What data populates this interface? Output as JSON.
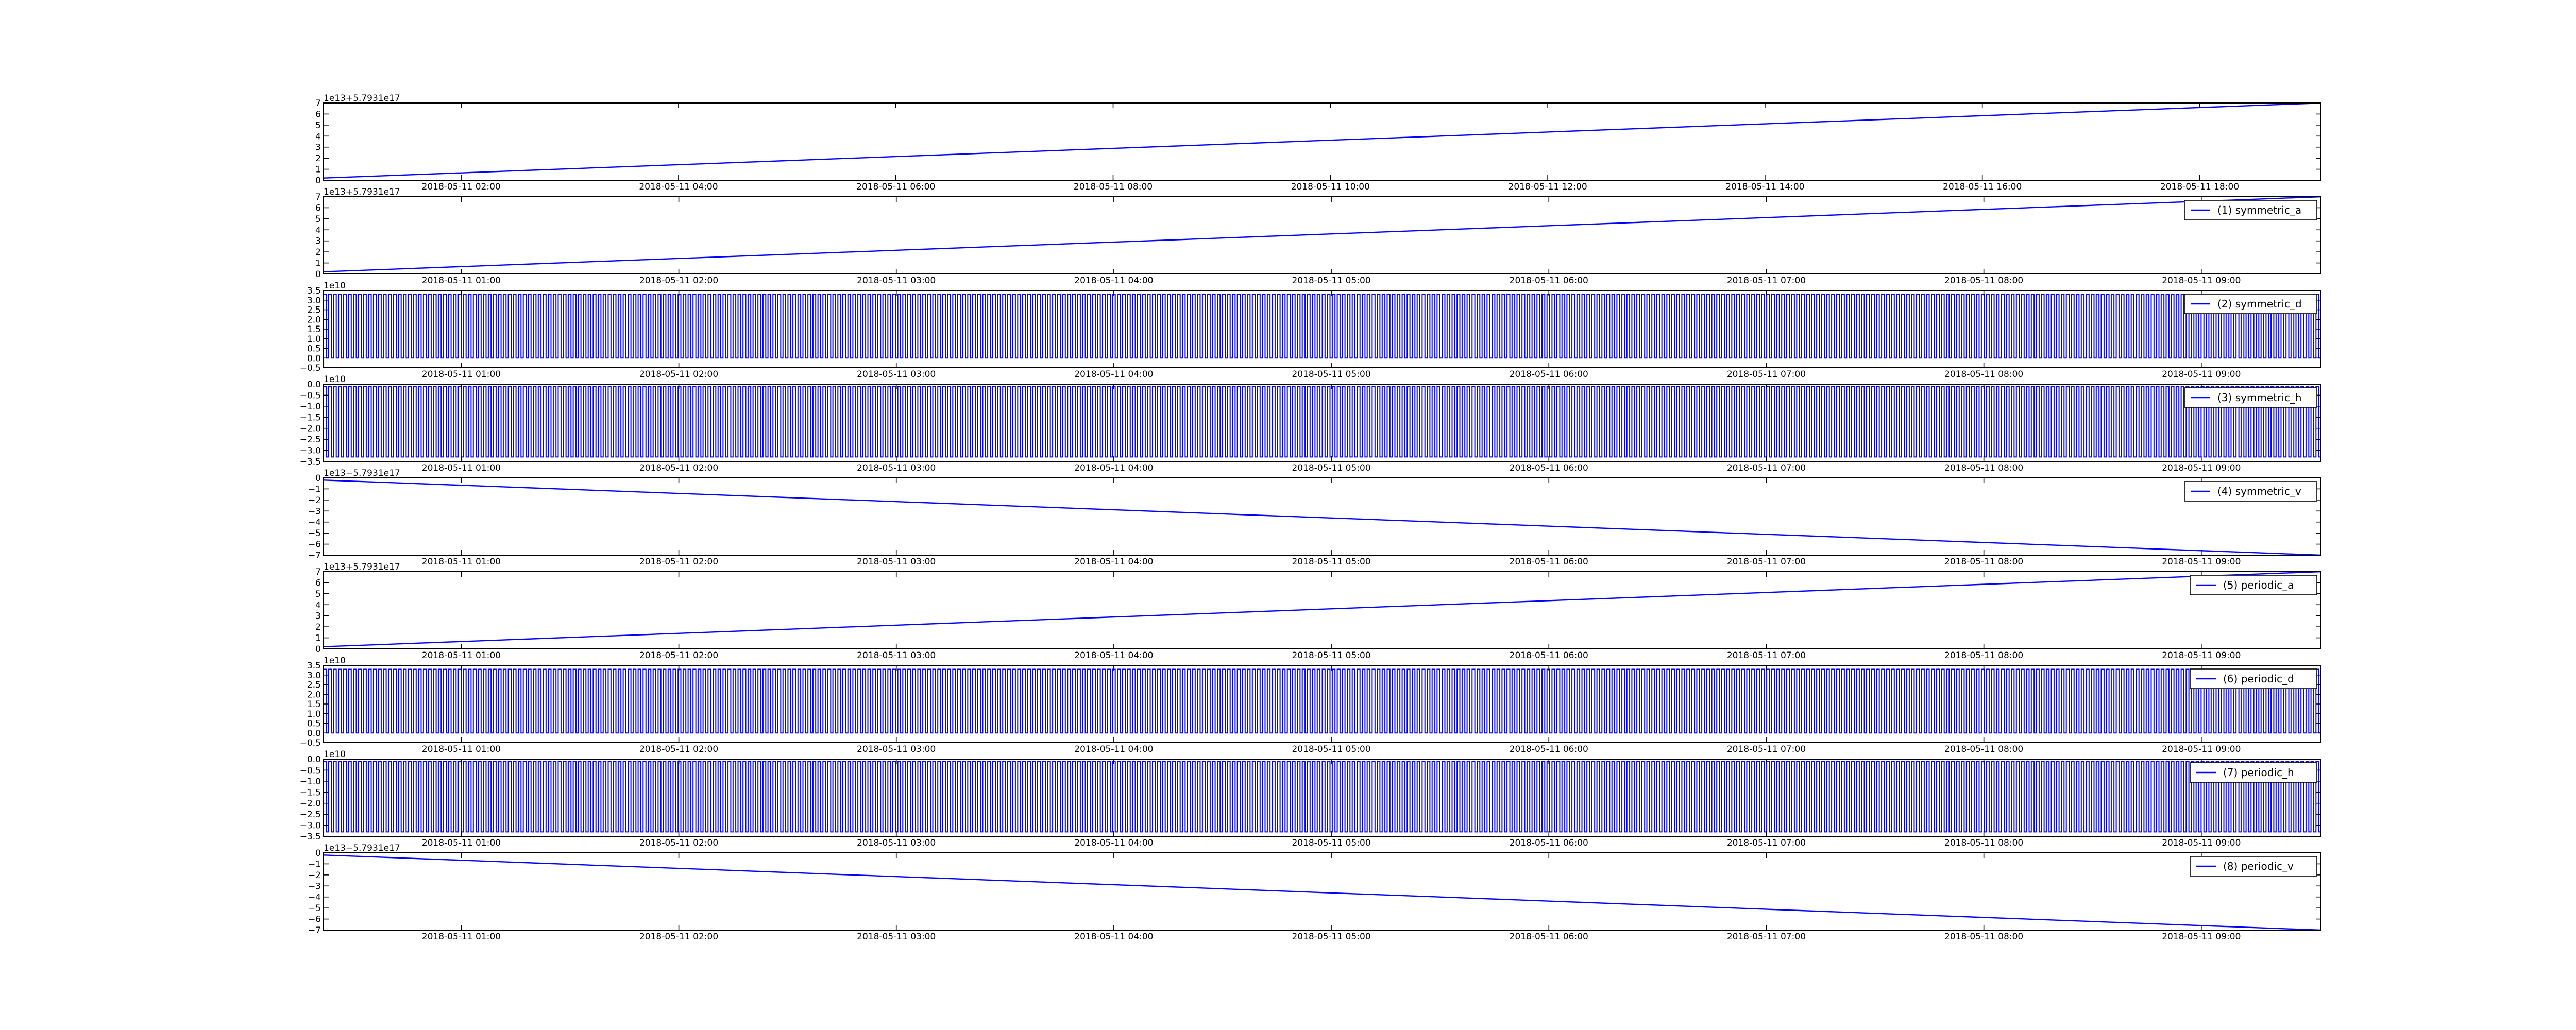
{
  "colors": {
    "line": "#0000ff",
    "axes": "#000000",
    "background": "#ffffff"
  },
  "chart_data": [
    {
      "type": "line",
      "kind": "ramp",
      "legend": "",
      "offset_label": "1e13+5.7931e17",
      "yticks": [
        "0",
        "1",
        "2",
        "3",
        "4",
        "5",
        "6",
        "7"
      ],
      "ylim": [
        0,
        7
      ],
      "xticks": [
        "2018-05-11 02:00",
        "2018-05-11 04:00",
        "2018-05-11 06:00",
        "2018-05-11 08:00",
        "2018-05-11 10:00",
        "2018-05-11 12:00",
        "2018-05-11 14:00",
        "2018-05-11 16:00",
        "2018-05-11 18:00"
      ],
      "xlim": [
        "2018-05-11 00:44",
        "2018-05-11 19:07"
      ],
      "series": [
        {
          "x": [
            "2018-05-11 00:44",
            "2018-05-11 19:07"
          ],
          "y": [
            0.2,
            7
          ]
        }
      ]
    },
    {
      "type": "line",
      "kind": "ramp",
      "legend": "(1) symmetric_a",
      "offset_label": "1e13+5.7931e17",
      "yticks": [
        "0",
        "1",
        "2",
        "3",
        "4",
        "5",
        "6",
        "7"
      ],
      "ylim": [
        0,
        7
      ],
      "xticks": [
        "2018-05-11 01:00",
        "2018-05-11 02:00",
        "2018-05-11 03:00",
        "2018-05-11 04:00",
        "2018-05-11 05:00",
        "2018-05-11 06:00",
        "2018-05-11 07:00",
        "2018-05-11 08:00",
        "2018-05-11 09:00"
      ],
      "xlim": [
        "2018-05-11 00:22",
        "2018-05-11 09:33"
      ],
      "series": [
        {
          "x": [
            "2018-05-11 00:22",
            "2018-05-11 09:33"
          ],
          "y": [
            0.2,
            7
          ]
        }
      ]
    },
    {
      "type": "line",
      "kind": "pulse",
      "legend": "(2) symmetric_d",
      "offset_label": "1e10",
      "yticks": [
        "−0.5",
        "0.0",
        "0.5",
        "1.0",
        "1.5",
        "2.0",
        "2.5",
        "3.0",
        "3.5"
      ],
      "ylim": [
        -0.5,
        3.5
      ],
      "xticks": [
        "2018-05-11 01:00",
        "2018-05-11 02:00",
        "2018-05-11 03:00",
        "2018-05-11 04:00",
        "2018-05-11 05:00",
        "2018-05-11 06:00",
        "2018-05-11 07:00",
        "2018-05-11 08:00",
        "2018-05-11 09:00"
      ],
      "xlim": [
        "2018-05-11 00:22",
        "2018-05-11 09:33"
      ],
      "series": [
        {
          "low": 0,
          "high": 3.3,
          "pulses": 400
        }
      ]
    },
    {
      "type": "line",
      "kind": "pulse",
      "legend": "(3) symmetric_h",
      "offset_label": "1e10",
      "yticks": [
        "−3.5",
        "−3.0",
        "−2.5",
        "−2.0",
        "−1.5",
        "−1.0",
        "−0.5",
        "0.0"
      ],
      "ylim": [
        -3.5,
        0
      ],
      "xticks": [
        "2018-05-11 01:00",
        "2018-05-11 02:00",
        "2018-05-11 03:00",
        "2018-05-11 04:00",
        "2018-05-11 05:00",
        "2018-05-11 06:00",
        "2018-05-11 07:00",
        "2018-05-11 08:00",
        "2018-05-11 09:00"
      ],
      "xlim": [
        "2018-05-11 00:22",
        "2018-05-11 09:33"
      ],
      "series": [
        {
          "low": -3.3,
          "high": -0.1,
          "pulses": 400
        }
      ]
    },
    {
      "type": "line",
      "kind": "ramp",
      "legend": "(4) symmetric_v",
      "offset_label": "1e13−5.7931e17",
      "yticks": [
        "−7",
        "−6",
        "−5",
        "−4",
        "−3",
        "−2",
        "−1",
        "0"
      ],
      "ylim": [
        -7,
        0
      ],
      "xticks": [
        "2018-05-11 01:00",
        "2018-05-11 02:00",
        "2018-05-11 03:00",
        "2018-05-11 04:00",
        "2018-05-11 05:00",
        "2018-05-11 06:00",
        "2018-05-11 07:00",
        "2018-05-11 08:00",
        "2018-05-11 09:00"
      ],
      "xlim": [
        "2018-05-11 00:22",
        "2018-05-11 09:33"
      ],
      "series": [
        {
          "x": [
            "2018-05-11 00:22",
            "2018-05-11 09:33"
          ],
          "y": [
            -0.2,
            -7
          ]
        }
      ]
    },
    {
      "type": "line",
      "kind": "ramp",
      "legend": "(5) periodic_a",
      "offset_label": "1e13+5.7931e17",
      "yticks": [
        "0",
        "1",
        "2",
        "3",
        "4",
        "5",
        "6",
        "7"
      ],
      "ylim": [
        0,
        7
      ],
      "xticks": [
        "2018-05-11 01:00",
        "2018-05-11 02:00",
        "2018-05-11 03:00",
        "2018-05-11 04:00",
        "2018-05-11 05:00",
        "2018-05-11 06:00",
        "2018-05-11 07:00",
        "2018-05-11 08:00",
        "2018-05-11 09:00"
      ],
      "xlim": [
        "2018-05-11 00:22",
        "2018-05-11 09:33"
      ],
      "series": [
        {
          "x": [
            "2018-05-11 00:22",
            "2018-05-11 09:33"
          ],
          "y": [
            0.2,
            7
          ]
        }
      ]
    },
    {
      "type": "line",
      "kind": "pulse",
      "legend": "(6) periodic_d",
      "offset_label": "1e10",
      "yticks": [
        "−0.5",
        "0.0",
        "0.5",
        "1.0",
        "1.5",
        "2.0",
        "2.5",
        "3.0",
        "3.5"
      ],
      "ylim": [
        -0.5,
        3.5
      ],
      "xticks": [
        "2018-05-11 01:00",
        "2018-05-11 02:00",
        "2018-05-11 03:00",
        "2018-05-11 04:00",
        "2018-05-11 05:00",
        "2018-05-11 06:00",
        "2018-05-11 07:00",
        "2018-05-11 08:00",
        "2018-05-11 09:00"
      ],
      "xlim": [
        "2018-05-11 00:22",
        "2018-05-11 09:33"
      ],
      "series": [
        {
          "low": 0,
          "high": 3.3,
          "pulses": 400
        }
      ]
    },
    {
      "type": "line",
      "kind": "pulse",
      "legend": "(7) periodic_h",
      "offset_label": "1e10",
      "yticks": [
        "−3.5",
        "−3.0",
        "−2.5",
        "−2.0",
        "−1.5",
        "−1.0",
        "−0.5",
        "0.0"
      ],
      "ylim": [
        -3.5,
        0
      ],
      "xticks": [
        "2018-05-11 01:00",
        "2018-05-11 02:00",
        "2018-05-11 03:00",
        "2018-05-11 04:00",
        "2018-05-11 05:00",
        "2018-05-11 06:00",
        "2018-05-11 07:00",
        "2018-05-11 08:00",
        "2018-05-11 09:00"
      ],
      "xlim": [
        "2018-05-11 00:22",
        "2018-05-11 09:33"
      ],
      "series": [
        {
          "low": -3.3,
          "high": -0.1,
          "pulses": 400
        }
      ]
    },
    {
      "type": "line",
      "kind": "ramp",
      "legend": "(8) periodic_v",
      "offset_label": "1e13−5.7931e17",
      "yticks": [
        "−7",
        "−6",
        "−5",
        "−4",
        "−3",
        "−2",
        "−1",
        "0"
      ],
      "ylim": [
        -7,
        0
      ],
      "xticks": [
        "2018-05-11 01:00",
        "2018-05-11 02:00",
        "2018-05-11 03:00",
        "2018-05-11 04:00",
        "2018-05-11 05:00",
        "2018-05-11 06:00",
        "2018-05-11 07:00",
        "2018-05-11 08:00",
        "2018-05-11 09:00"
      ],
      "xlim": [
        "2018-05-11 00:22",
        "2018-05-11 09:33"
      ],
      "series": [
        {
          "x": [
            "2018-05-11 00:22",
            "2018-05-11 09:33"
          ],
          "y": [
            -0.2,
            -7
          ]
        }
      ]
    }
  ]
}
